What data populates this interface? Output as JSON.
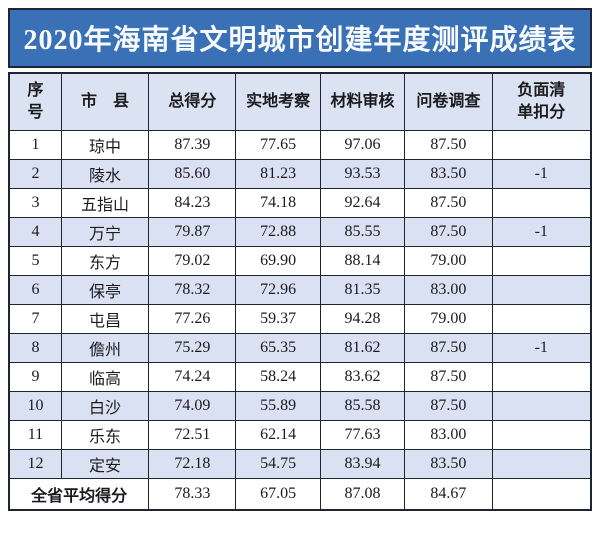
{
  "title": "2020年海南省文明城市创建年度测评成绩表",
  "colors": {
    "banner_bg": "#3a70b5",
    "banner_text": "#f7fafd",
    "border": "#1e2530",
    "header_row_bg": "#dbe2f1",
    "alt_row_bg": "#d9e1f2",
    "row_bg": "#ffffff",
    "cell_text": "#1b1b1f"
  },
  "table": {
    "columns": [
      {
        "key": "no",
        "label": "序\n号"
      },
      {
        "key": "city",
        "label": "市　县"
      },
      {
        "key": "total",
        "label": "总得分"
      },
      {
        "key": "field",
        "label": "实地考察"
      },
      {
        "key": "material",
        "label": "材料审核"
      },
      {
        "key": "survey",
        "label": "问卷调查"
      },
      {
        "key": "deduction",
        "label": "负面清\n单扣分"
      }
    ],
    "rows": [
      {
        "no": "1",
        "city": "琼中",
        "total": "87.39",
        "field": "77.65",
        "material": "97.06",
        "survey": "87.50",
        "deduction": ""
      },
      {
        "no": "2",
        "city": "陵水",
        "total": "85.60",
        "field": "81.23",
        "material": "93.53",
        "survey": "83.50",
        "deduction": "-1"
      },
      {
        "no": "3",
        "city": "五指山",
        "total": "84.23",
        "field": "74.18",
        "material": "92.64",
        "survey": "87.50",
        "deduction": ""
      },
      {
        "no": "4",
        "city": "万宁",
        "total": "79.87",
        "field": "72.88",
        "material": "85.55",
        "survey": "87.50",
        "deduction": "-1"
      },
      {
        "no": "5",
        "city": "东方",
        "total": "79.02",
        "field": "69.90",
        "material": "88.14",
        "survey": "79.00",
        "deduction": ""
      },
      {
        "no": "6",
        "city": "保亭",
        "total": "78.32",
        "field": "72.96",
        "material": "81.35",
        "survey": "83.00",
        "deduction": ""
      },
      {
        "no": "7",
        "city": "屯昌",
        "total": "77.26",
        "field": "59.37",
        "material": "94.28",
        "survey": "79.00",
        "deduction": ""
      },
      {
        "no": "8",
        "city": "儋州",
        "total": "75.29",
        "field": "65.35",
        "material": "81.62",
        "survey": "87.50",
        "deduction": "-1"
      },
      {
        "no": "9",
        "city": "临高",
        "total": "74.24",
        "field": "58.24",
        "material": "83.62",
        "survey": "87.50",
        "deduction": ""
      },
      {
        "no": "10",
        "city": "白沙",
        "total": "74.09",
        "field": "55.89",
        "material": "85.58",
        "survey": "87.50",
        "deduction": ""
      },
      {
        "no": "11",
        "city": "乐东",
        "total": "72.51",
        "field": "62.14",
        "material": "77.63",
        "survey": "83.00",
        "deduction": ""
      },
      {
        "no": "12",
        "city": "定安",
        "total": "72.18",
        "field": "54.75",
        "material": "83.94",
        "survey": "83.50",
        "deduction": ""
      }
    ],
    "footer": {
      "label": "全省平均得分",
      "total": "78.33",
      "field": "67.05",
      "material": "87.08",
      "survey": "84.67",
      "deduction": ""
    }
  }
}
